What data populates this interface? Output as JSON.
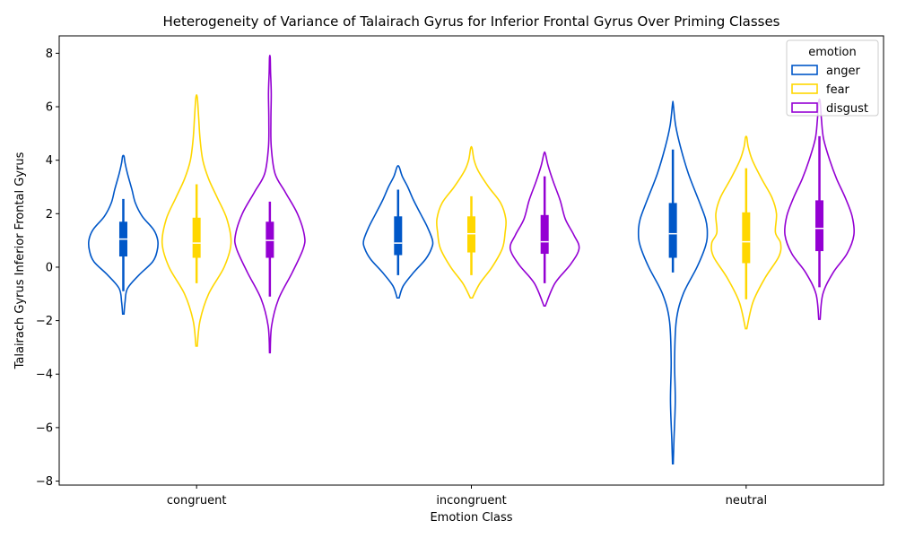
{
  "chart_data": {
    "type": "violin",
    "title": "Heterogeneity of Variance of Talairach Gyrus for Inferior Frontal Gyrus Over Priming Classes",
    "xlabel": "Emotion Class",
    "ylabel": "Talairach Gyrus Inferior Frontal Gyrus",
    "categories": [
      "congruent",
      "incongruent",
      "neutral"
    ],
    "ylim": [
      -8.15,
      8.65
    ],
    "yticks": [
      -8,
      -6,
      -4,
      -2,
      0,
      2,
      4,
      6,
      8
    ],
    "ytick_labels": [
      "−8",
      "−6",
      "−4",
      "−2",
      "0",
      "2",
      "4",
      "6",
      "8"
    ],
    "grid": false,
    "legend": {
      "title": "emotion",
      "position": "top-right"
    },
    "series": [
      {
        "name": "anger",
        "color": "#0057c8",
        "violins": [
          {
            "min": -1.75,
            "max": 4.15,
            "q1": 0.4,
            "median": 1.05,
            "q3": 1.7,
            "whisker_low": -0.9,
            "whisker_high": 2.55,
            "profile": [
              [
                -1.75,
                0.02
              ],
              [
                -1.3,
                0.05
              ],
              [
                -0.8,
                0.12
              ],
              [
                -0.3,
                0.45
              ],
              [
                0.2,
                0.85
              ],
              [
                0.6,
                0.98
              ],
              [
                1.0,
                1.0
              ],
              [
                1.4,
                0.88
              ],
              [
                1.9,
                0.55
              ],
              [
                2.4,
                0.35
              ],
              [
                2.9,
                0.25
              ],
              [
                3.5,
                0.12
              ],
              [
                3.9,
                0.05
              ],
              [
                4.15,
                0.02
              ]
            ]
          },
          {
            "min": -1.15,
            "max": 3.75,
            "q1": 0.45,
            "median": 0.9,
            "q3": 1.9,
            "whisker_low": -0.3,
            "whisker_high": 2.9,
            "profile": [
              [
                -1.15,
                0.03
              ],
              [
                -0.7,
                0.15
              ],
              [
                -0.2,
                0.45
              ],
              [
                0.3,
                0.8
              ],
              [
                0.7,
                0.97
              ],
              [
                1.0,
                1.0
              ],
              [
                1.5,
                0.85
              ],
              [
                2.0,
                0.65
              ],
              [
                2.5,
                0.45
              ],
              [
                3.0,
                0.28
              ],
              [
                3.4,
                0.12
              ],
              [
                3.75,
                0.03
              ]
            ]
          },
          {
            "min": -7.35,
            "max": 6.1,
            "q1": 0.35,
            "median": 1.25,
            "q3": 2.4,
            "whisker_low": -0.2,
            "whisker_high": 4.4,
            "profile": [
              [
                -7.35,
                0.01
              ],
              [
                -6.5,
                0.03
              ],
              [
                -5.0,
                0.07
              ],
              [
                -3.5,
                0.05
              ],
              [
                -2.0,
                0.1
              ],
              [
                -1.0,
                0.3
              ],
              [
                0.0,
                0.7
              ],
              [
                0.8,
                0.95
              ],
              [
                1.3,
                1.0
              ],
              [
                1.8,
                0.95
              ],
              [
                2.5,
                0.75
              ],
              [
                3.5,
                0.45
              ],
              [
                4.5,
                0.22
              ],
              [
                5.3,
                0.08
              ],
              [
                6.1,
                0.01
              ]
            ]
          }
        ]
      },
      {
        "name": "fear",
        "color": "#ffd700",
        "violins": [
          {
            "min": -2.95,
            "max": 6.35,
            "q1": 0.35,
            "median": 0.9,
            "q3": 1.85,
            "whisker_low": -0.6,
            "whisker_high": 3.1,
            "profile": [
              [
                -2.95,
                0.02
              ],
              [
                -2.0,
                0.1
              ],
              [
                -1.0,
                0.35
              ],
              [
                0.0,
                0.8
              ],
              [
                0.9,
                1.0
              ],
              [
                1.8,
                0.88
              ],
              [
                2.6,
                0.6
              ],
              [
                3.3,
                0.35
              ],
              [
                4.0,
                0.18
              ],
              [
                4.8,
                0.1
              ],
              [
                5.6,
                0.06
              ],
              [
                6.35,
                0.02
              ]
            ]
          },
          {
            "min": -1.15,
            "max": 4.45,
            "q1": 0.55,
            "median": 1.25,
            "q3": 1.9,
            "whisker_low": -0.3,
            "whisker_high": 2.65,
            "profile": [
              [
                -1.15,
                0.03
              ],
              [
                -0.6,
                0.25
              ],
              [
                0.0,
                0.6
              ],
              [
                0.7,
                0.9
              ],
              [
                1.3,
                0.98
              ],
              [
                1.8,
                1.0
              ],
              [
                2.4,
                0.85
              ],
              [
                3.0,
                0.5
              ],
              [
                3.6,
                0.2
              ],
              [
                4.0,
                0.08
              ],
              [
                4.45,
                0.02
              ]
            ]
          },
          {
            "min": -2.3,
            "max": 4.85,
            "q1": 0.15,
            "median": 0.95,
            "q3": 2.05,
            "whisker_low": -1.2,
            "whisker_high": 3.7,
            "profile": [
              [
                -2.3,
                0.02
              ],
              [
                -1.3,
                0.2
              ],
              [
                -0.4,
                0.55
              ],
              [
                0.4,
                0.95
              ],
              [
                0.9,
                1.0
              ],
              [
                1.3,
                0.85
              ],
              [
                2.0,
                0.88
              ],
              [
                2.6,
                0.75
              ],
              [
                3.3,
                0.45
              ],
              [
                4.0,
                0.18
              ],
              [
                4.5,
                0.06
              ],
              [
                4.85,
                0.02
              ]
            ]
          }
        ]
      },
      {
        "name": "disgust",
        "color": "#9400d3",
        "violins": [
          {
            "min": -3.2,
            "max": 7.85,
            "q1": 0.35,
            "median": 1.0,
            "q3": 1.7,
            "whisker_low": -1.1,
            "whisker_high": 2.45,
            "profile": [
              [
                -3.2,
                0.01
              ],
              [
                -2.2,
                0.05
              ],
              [
                -1.2,
                0.25
              ],
              [
                -0.2,
                0.65
              ],
              [
                0.7,
                0.97
              ],
              [
                1.2,
                1.0
              ],
              [
                2.0,
                0.8
              ],
              [
                2.8,
                0.45
              ],
              [
                3.5,
                0.15
              ],
              [
                4.5,
                0.04
              ],
              [
                5.5,
                0.03
              ],
              [
                6.5,
                0.04
              ],
              [
                7.3,
                0.02
              ],
              [
                7.85,
                0.01
              ]
            ]
          },
          {
            "min": -1.45,
            "max": 4.25,
            "q1": 0.5,
            "median": 0.95,
            "q3": 1.95,
            "whisker_low": -0.6,
            "whisker_high": 3.4,
            "profile": [
              [
                -1.45,
                0.02
              ],
              [
                -0.6,
                0.3
              ],
              [
                0.1,
                0.75
              ],
              [
                0.7,
                1.0
              ],
              [
                1.2,
                0.85
              ],
              [
                1.8,
                0.6
              ],
              [
                2.5,
                0.45
              ],
              [
                3.2,
                0.25
              ],
              [
                3.8,
                0.1
              ],
              [
                4.25,
                0.02
              ]
            ]
          },
          {
            "min": -1.95,
            "max": 6.2,
            "q1": 0.6,
            "median": 1.45,
            "q3": 2.5,
            "whisker_low": -0.75,
            "whisker_high": 4.9,
            "profile": [
              [
                -1.95,
                0.02
              ],
              [
                -1.0,
                0.1
              ],
              [
                -0.2,
                0.4
              ],
              [
                0.5,
                0.8
              ],
              [
                1.2,
                1.0
              ],
              [
                1.9,
                0.95
              ],
              [
                2.6,
                0.75
              ],
              [
                3.3,
                0.5
              ],
              [
                4.0,
                0.3
              ],
              [
                4.8,
                0.12
              ],
              [
                5.5,
                0.06
              ],
              [
                6.2,
                0.02
              ]
            ]
          }
        ]
      }
    ]
  }
}
